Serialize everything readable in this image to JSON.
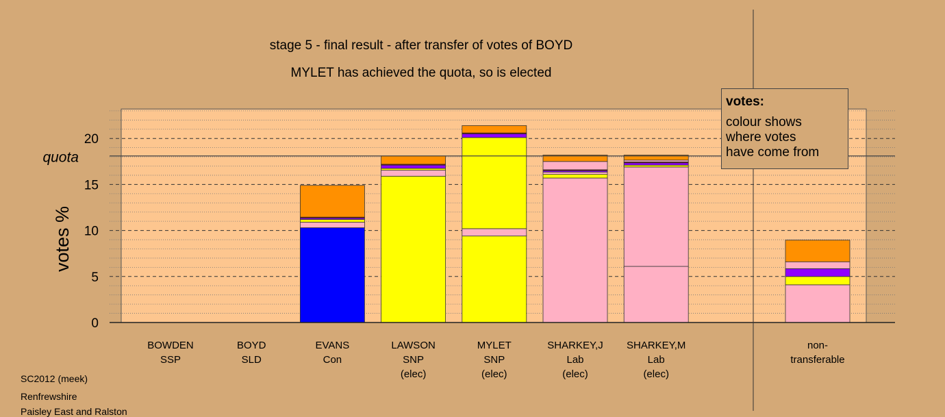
{
  "titles": {
    "line1": "stage 5 - final result - after transfer of votes of BOYD",
    "line2": "MYLET has achieved the quota, so is elected"
  },
  "legend": {
    "title": "votes:",
    "lines": [
      "colour shows",
      "where votes",
      "have come from"
    ]
  },
  "footer": [
    "SC2012 (meek)",
    "Renfrewshire",
    "Paisley East and Ralston"
  ],
  "colors": {
    "background": "#d4a977",
    "plot_area": "#fdc68f",
    "SNP": "#ffff00",
    "Lab": "#ffb0c4",
    "Con": "#0000ff",
    "SSP": "#9000ff",
    "SLD": "#ff9000",
    "Other": "#8b0000"
  },
  "chart_data": {
    "type": "bar",
    "stacked": true,
    "ylabel": "votes %",
    "ylim": [
      0,
      23.2
    ],
    "yticks": [
      0,
      5,
      10,
      15,
      20
    ],
    "quota": 18.1,
    "quota_label": "quota",
    "grid": true,
    "candidates": [
      {
        "name": "BOWDEN",
        "party": "SSP",
        "status": "",
        "segments": []
      },
      {
        "name": "BOYD",
        "party": "SLD",
        "status": "",
        "segments": []
      },
      {
        "name": "EVANS",
        "party": "Con",
        "status": "",
        "segments": [
          {
            "from": "Con",
            "value": 10.3
          },
          {
            "from": "Lab",
            "value": 0.6
          },
          {
            "from": "SNP",
            "value": 0.3
          },
          {
            "from": "SSP",
            "value": 0.15
          },
          {
            "from": "Other",
            "value": 0.1
          },
          {
            "from": "SLD",
            "value": 3.45
          }
        ]
      },
      {
        "name": "LAWSON",
        "party": "SNP",
        "status": "(elec)",
        "segments": [
          {
            "from": "SNP",
            "value": 15.9
          },
          {
            "from": "Lab",
            "value": 0.65
          },
          {
            "from": "SNP",
            "value": 0.2
          },
          {
            "from": "SSP",
            "value": 0.35
          },
          {
            "from": "Other",
            "value": 0.1
          },
          {
            "from": "SLD",
            "value": 0.9
          }
        ]
      },
      {
        "name": "MYLET",
        "party": "SNP",
        "status": "(elec)",
        "segments": [
          {
            "from": "SNP",
            "value": 9.4
          },
          {
            "from": "Lab",
            "value": 0.8
          },
          {
            "from": "SNP",
            "value": 9.9
          },
          {
            "from": "SSP",
            "value": 0.4
          },
          {
            "from": "Other",
            "value": 0.1
          },
          {
            "from": "SLD",
            "value": 0.8
          }
        ]
      },
      {
        "name": "SHARKEY,J",
        "party": "Lab",
        "status": "(elec)",
        "segments": [
          {
            "from": "Lab",
            "value": 15.7
          },
          {
            "from": "SNP",
            "value": 0.4
          },
          {
            "from": "Lab",
            "value": 0.25
          },
          {
            "from": "SSP",
            "value": 0.15
          },
          {
            "from": "Other",
            "value": 0.1
          },
          {
            "from": "Lab",
            "value": 0.9
          },
          {
            "from": "SLD",
            "value": 0.7
          }
        ]
      },
      {
        "name": "SHARKEY,M",
        "party": "Lab",
        "status": "(elec)",
        "segments": [
          {
            "from": "Lab",
            "value": 6.1
          },
          {
            "from": "Lab",
            "value": 10.8
          },
          {
            "from": "SNP",
            "value": 0.2
          },
          {
            "from": "SSP",
            "value": 0.25
          },
          {
            "from": "Other",
            "value": 0.1
          },
          {
            "from": "Lab",
            "value": 0.2
          },
          {
            "from": "SLD",
            "value": 0.55
          }
        ]
      }
    ],
    "nontransferable": {
      "label_lines": [
        "non-",
        "transferable"
      ],
      "segments": [
        {
          "from": "Lab",
          "value": 4.1
        },
        {
          "from": "SNP",
          "value": 0.9
        },
        {
          "from": "SSP",
          "value": 0.85
        },
        {
          "from": "Lab",
          "value": 0.75
        },
        {
          "from": "SLD",
          "value": 2.35
        }
      ]
    }
  }
}
